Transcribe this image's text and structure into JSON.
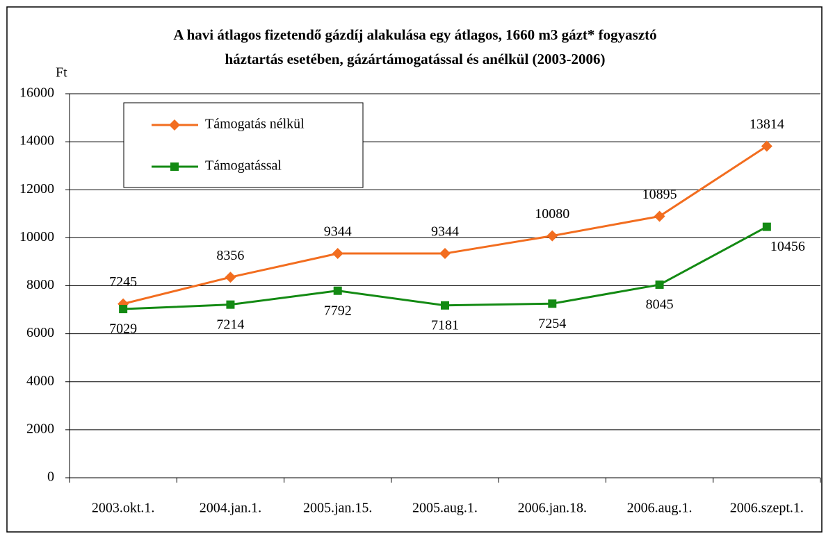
{
  "chart_data": {
    "type": "line",
    "title": [
      "A havi átlagos fizetendő gázdíj alakulása egy átlagos, 1660 m3 gázt* fogyasztó",
      "háztartás esetében, gázártámogatással és anélkül (2003-2006)"
    ],
    "y_label": "Ft",
    "categories": [
      "2003.okt.1.",
      "2004.jan.1.",
      "2005.jan.15.",
      "2005.aug.1.",
      "2006.jan.18.",
      "2006.aug.1.",
      "2006.szept.1."
    ],
    "series": [
      {
        "name": "Támogatás nélkül",
        "color": "#f26d1f",
        "marker": "diamond",
        "values": [
          7245,
          8356,
          9344,
          9344,
          10080,
          10895,
          13814
        ]
      },
      {
        "name": "Támogatással",
        "color": "#138a13",
        "marker": "square",
        "values": [
          7029,
          7214,
          7792,
          7181,
          7254,
          8045,
          10456
        ]
      }
    ],
    "ylim": [
      0,
      16000
    ],
    "yticks": [
      0,
      2000,
      4000,
      6000,
      8000,
      10000,
      12000,
      14000,
      16000
    ],
    "grid": true,
    "legend": "upper left"
  }
}
